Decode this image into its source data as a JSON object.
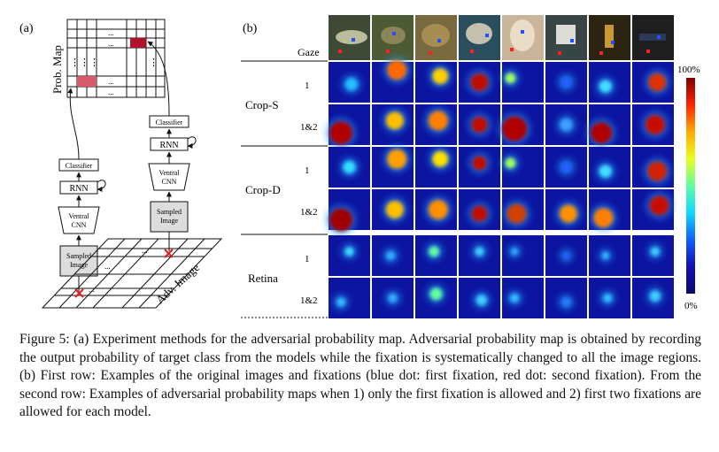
{
  "panel_a": {
    "label": "(a)",
    "prob_map_label": "Prob. Map",
    "classifier_label": "Classifier",
    "rnn_label": "RNN",
    "ventral_label_1": "Ventral",
    "ventral_label_2": "CNN",
    "sampled_label_1": "Sampled",
    "sampled_label_2": "Image",
    "adv_image_label": "Adv. Image",
    "dots": "...",
    "vdots": "⋮"
  },
  "panel_b": {
    "label": "(b)",
    "gaze_label": "Gaze",
    "groups": [
      {
        "name": "Crop-S",
        "rows": [
          "1",
          "1&2"
        ]
      },
      {
        "name": "Crop-D",
        "rows": [
          "1",
          "1&2"
        ]
      },
      {
        "name": "Retina",
        "rows": [
          "1",
          "1&2"
        ]
      }
    ],
    "colorbar_max": "100%",
    "colorbar_min": "0%",
    "colorbar_colors": [
      "#7f0000",
      "#ff2200",
      "#ffaa00",
      "#e8ff20",
      "#5fffa0",
      "#10d8ff",
      "#1060ff",
      "#1010b0",
      "#0a0a70"
    ],
    "heatmap_background": "#0c14a0"
  },
  "caption": {
    "text": "Figure 5: (a) Experiment methods for the adversarial probability map. Adversarial probability map is obtained by recording the output probability of target class from the models while the fixation is systematically changed to all the image regions. (b) First row: Examples of the original images and fixations (blue dot: first fixation, red dot: second fixation). From the second row: Examples of adversarial probability maps when 1) only the first fixation is allowed and 2) first two fixations are allowed for each model."
  }
}
